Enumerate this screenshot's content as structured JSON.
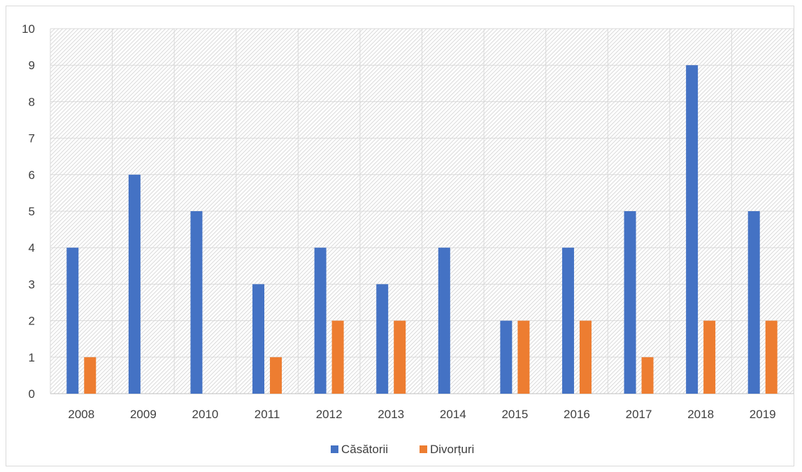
{
  "chart_data": {
    "type": "bar",
    "categories": [
      "2008",
      "2009",
      "2010",
      "2011",
      "2012",
      "2013",
      "2014",
      "2015",
      "2016",
      "2017",
      "2018",
      "2019"
    ],
    "series": [
      {
        "name": "Căsătorii",
        "color": "#4472c4",
        "values": [
          4,
          6,
          5,
          3,
          4,
          3,
          4,
          2,
          4,
          5,
          9,
          5
        ]
      },
      {
        "name": "Divorțuri",
        "color": "#ed7d31",
        "values": [
          1,
          0,
          0,
          1,
          2,
          2,
          0,
          2,
          2,
          1,
          2,
          2
        ]
      }
    ],
    "ylim": [
      0,
      10
    ],
    "yticks": [
      0,
      1,
      2,
      3,
      4,
      5,
      6,
      7,
      8,
      9,
      10
    ],
    "grid": true,
    "plot_background": "hatched light gray",
    "legend_position": "bottom"
  }
}
